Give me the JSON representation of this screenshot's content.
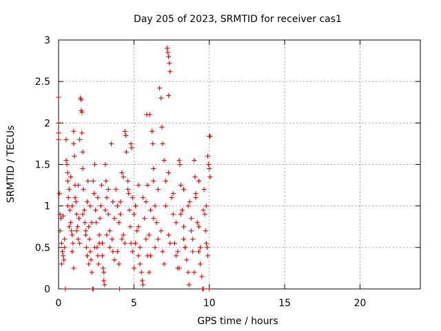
{
  "chart_data": {
    "type": "scatter",
    "title": "Day 205 of 2023, SRMTID for receiver cas1",
    "xlabel": "GPS time / hours",
    "ylabel": "SRMTID / TECUs",
    "xlim": [
      0,
      24
    ],
    "ylim": [
      0,
      3
    ],
    "x_ticks": [
      0,
      5,
      10,
      15,
      20
    ],
    "x_tick_labels": [
      "0",
      "5",
      "10",
      "15",
      "20"
    ],
    "y_ticks": [
      0,
      0.5,
      1,
      1.5,
      2,
      2.5,
      3
    ],
    "y_tick_labels": [
      "0",
      "0.5",
      "1",
      "1.5",
      "2",
      "2.5",
      "3"
    ],
    "grid": true,
    "marker": "+",
    "marker_color": "#e00000",
    "series": [
      {
        "name": "cas1",
        "points": [
          [
            0.0,
            2.31
          ],
          [
            0.0,
            2.0
          ],
          [
            0.0,
            1.88
          ],
          [
            0.0,
            1.8
          ],
          [
            0.05,
            1.15
          ],
          [
            0.1,
            0.9
          ],
          [
            0.1,
            0.7
          ],
          [
            0.15,
            0.85
          ],
          [
            0.2,
            0.55
          ],
          [
            0.2,
            0.3
          ],
          [
            0.25,
            0.45
          ],
          [
            0.3,
            0.4
          ],
          [
            0.35,
            0.35
          ],
          [
            0.4,
            0.6
          ],
          [
            0.45,
            0.0
          ],
          [
            0.5,
            1.8
          ],
          [
            0.5,
            1.55
          ],
          [
            0.55,
            1.5
          ],
          [
            0.6,
            1.4
          ],
          [
            0.6,
            1.3
          ],
          [
            0.65,
            1.1
          ],
          [
            0.7,
            1.2
          ],
          [
            0.75,
            0.95
          ],
          [
            0.8,
            0.8
          ],
          [
            0.85,
            0.7
          ],
          [
            0.9,
            1.0
          ],
          [
            0.9,
            0.65
          ],
          [
            0.95,
            0.55
          ],
          [
            1.0,
            1.9
          ],
          [
            1.0,
            1.75
          ],
          [
            1.05,
            1.6
          ],
          [
            1.1,
            1.25
          ],
          [
            1.15,
            1.05
          ],
          [
            1.2,
            0.9
          ],
          [
            1.25,
            0.75
          ],
          [
            1.3,
            0.6
          ],
          [
            1.35,
            0.85
          ],
          [
            1.4,
            1.8
          ],
          [
            1.45,
            2.3
          ],
          [
            1.5,
            2.28
          ],
          [
            1.5,
            2.15
          ],
          [
            1.55,
            2.13
          ],
          [
            1.55,
            1.88
          ],
          [
            1.6,
            1.65
          ],
          [
            1.6,
            1.45
          ],
          [
            1.65,
            1.2
          ],
          [
            1.7,
            0.95
          ],
          [
            1.75,
            0.8
          ],
          [
            1.8,
            0.7
          ],
          [
            1.85,
            0.5
          ],
          [
            1.9,
            1.05
          ],
          [
            1.95,
            1.3
          ],
          [
            2.0,
            0.75
          ],
          [
            2.05,
            0.6
          ],
          [
            2.1,
            0.45
          ],
          [
            2.15,
            0.35
          ],
          [
            2.2,
            0.2
          ],
          [
            2.25,
            0.0
          ],
          [
            2.3,
            0.0
          ],
          [
            2.35,
            1.15
          ],
          [
            2.4,
            1.5
          ],
          [
            2.45,
            0.95
          ],
          [
            2.5,
            0.8
          ],
          [
            2.55,
            0.5
          ],
          [
            2.6,
            0.4
          ],
          [
            2.65,
            0.3
          ],
          [
            2.7,
            0.65
          ],
          [
            2.75,
            0.85
          ],
          [
            2.8,
            1.0
          ],
          [
            2.85,
            1.25
          ],
          [
            2.9,
            0.55
          ],
          [
            2.95,
            0.25
          ],
          [
            3.0,
            0.1
          ],
          [
            3.05,
            0.05
          ],
          [
            3.1,
            1.5
          ],
          [
            3.15,
            1.3
          ],
          [
            3.2,
            1.1
          ],
          [
            3.3,
            0.9
          ],
          [
            3.4,
            0.7
          ],
          [
            3.5,
            1.75
          ],
          [
            3.55,
            0.6
          ],
          [
            3.6,
            0.45
          ],
          [
            3.7,
            0.35
          ],
          [
            3.8,
            1.2
          ],
          [
            3.9,
            1.0
          ],
          [
            4.0,
            0.8
          ],
          [
            4.05,
            0.0
          ],
          [
            4.1,
            1.05
          ],
          [
            4.2,
            1.4
          ],
          [
            4.3,
            0.65
          ],
          [
            4.4,
            1.9
          ],
          [
            4.45,
            1.85
          ],
          [
            4.5,
            1.65
          ],
          [
            4.6,
            1.3
          ],
          [
            4.65,
            1.15
          ],
          [
            4.7,
            0.95
          ],
          [
            4.75,
            0.75
          ],
          [
            4.8,
            1.75
          ],
          [
            4.85,
            1.7
          ],
          [
            4.9,
            1.1
          ],
          [
            5.0,
            0.9
          ],
          [
            5.1,
            0.55
          ],
          [
            5.2,
            0.7
          ],
          [
            5.3,
            0.4
          ],
          [
            5.4,
            0.3
          ],
          [
            5.5,
            0.2
          ],
          [
            5.55,
            0.1
          ],
          [
            5.6,
            0.05
          ],
          [
            5.7,
            0.85
          ],
          [
            5.8,
            1.05
          ],
          [
            5.85,
            2.1
          ],
          [
            5.9,
            1.25
          ],
          [
            6.0,
            0.65
          ],
          [
            6.05,
            2.1
          ],
          [
            6.1,
            0.4
          ],
          [
            6.2,
            1.9
          ],
          [
            6.25,
            1.75
          ],
          [
            6.3,
            1.45
          ],
          [
            6.4,
            1.0
          ],
          [
            6.5,
            0.8
          ],
          [
            6.6,
            0.6
          ],
          [
            6.7,
            2.42
          ],
          [
            6.8,
            2.3
          ],
          [
            6.85,
            1.95
          ],
          [
            6.9,
            1.75
          ],
          [
            7.0,
            1.55
          ],
          [
            7.1,
            1.3
          ],
          [
            7.2,
            2.9
          ],
          [
            7.25,
            2.85
          ],
          [
            7.3,
            2.8
          ],
          [
            7.35,
            2.72
          ],
          [
            7.4,
            2.62
          ],
          [
            7.3,
            2.33
          ],
          [
            7.5,
            1.1
          ],
          [
            7.6,
            0.9
          ],
          [
            7.7,
            0.55
          ],
          [
            7.8,
            0.4
          ],
          [
            7.9,
            0.25
          ],
          [
            8.0,
            1.55
          ],
          [
            8.05,
            1.5
          ],
          [
            8.1,
            1.25
          ],
          [
            8.2,
            0.95
          ],
          [
            8.3,
            0.75
          ],
          [
            8.4,
            0.5
          ],
          [
            8.5,
            0.35
          ],
          [
            8.6,
            0.2
          ],
          [
            8.65,
            0.05
          ],
          [
            8.7,
            1.05
          ],
          [
            8.8,
            0.85
          ],
          [
            8.9,
            0.6
          ],
          [
            9.0,
            1.55
          ],
          [
            9.05,
            1.35
          ],
          [
            9.1,
            1.1
          ],
          [
            9.2,
            0.8
          ],
          [
            9.3,
            0.45
          ],
          [
            9.4,
            0.3
          ],
          [
            9.5,
            0.15
          ],
          [
            9.55,
            0.0
          ],
          [
            9.6,
            0.0
          ],
          [
            9.65,
            1.2
          ],
          [
            9.7,
            0.9
          ],
          [
            9.75,
            0.7
          ],
          [
            9.8,
            1.0
          ],
          [
            9.85,
            0.5
          ],
          [
            9.9,
            1.6
          ],
          [
            9.95,
            1.5
          ],
          [
            10.0,
            1.45
          ],
          [
            10.05,
            1.35
          ],
          [
            10.0,
            1.84
          ],
          [
            10.05,
            1.84
          ],
          [
            10.0,
            0.0
          ],
          [
            0.3,
            0.88
          ],
          [
            0.7,
            0.75
          ],
          [
            1.2,
            0.7
          ],
          [
            1.8,
            0.65
          ],
          [
            2.2,
            0.8
          ],
          [
            2.7,
            0.55
          ],
          [
            3.2,
            0.65
          ],
          [
            3.7,
            0.85
          ],
          [
            4.2,
            0.6
          ],
          [
            4.8,
            0.55
          ],
          [
            5.3,
            0.75
          ],
          [
            5.8,
            0.6
          ],
          [
            6.3,
            0.85
          ],
          [
            6.8,
            0.7
          ],
          [
            7.3,
            0.65
          ],
          [
            7.8,
            0.8
          ],
          [
            8.3,
            0.6
          ],
          [
            8.8,
            0.7
          ],
          [
            9.3,
            0.75
          ],
          [
            9.8,
            0.55
          ],
          [
            0.6,
            1.0
          ],
          [
            1.1,
            1.1
          ],
          [
            1.6,
            0.9
          ],
          [
            2.1,
            1.0
          ],
          [
            2.6,
            1.1
          ],
          [
            3.1,
            0.95
          ],
          [
            3.6,
            1.05
          ],
          [
            4.1,
            0.9
          ],
          [
            4.6,
            1.2
          ],
          [
            5.1,
            1.0
          ],
          [
            5.6,
            1.1
          ],
          [
            6.1,
            0.95
          ],
          [
            6.6,
            1.2
          ],
          [
            7.1,
            1.0
          ],
          [
            7.6,
            1.15
          ],
          [
            8.1,
            0.9
          ],
          [
            8.6,
            1.0
          ],
          [
            9.1,
            1.15
          ],
          [
            9.6,
            0.95
          ],
          [
            0.4,
            0.5
          ],
          [
            0.9,
            0.45
          ],
          [
            1.4,
            0.55
          ],
          [
            1.9,
            0.4
          ],
          [
            2.4,
            0.5
          ],
          [
            2.9,
            0.4
          ],
          [
            3.4,
            0.5
          ],
          [
            3.9,
            0.45
          ],
          [
            4.4,
            0.55
          ],
          [
            4.9,
            0.45
          ],
          [
            5.4,
            0.5
          ],
          [
            5.9,
            0.4
          ],
          [
            6.4,
            0.5
          ],
          [
            6.9,
            0.45
          ],
          [
            7.4,
            0.55
          ],
          [
            7.9,
            0.45
          ],
          [
            8.4,
            0.5
          ],
          [
            8.9,
            0.45
          ],
          [
            9.4,
            0.5
          ],
          [
            9.9,
            0.4
          ],
          [
            0.8,
            1.35
          ],
          [
            1.3,
            1.25
          ],
          [
            2.3,
            1.3
          ],
          [
            3.3,
            1.2
          ],
          [
            4.3,
            1.35
          ],
          [
            5.3,
            1.25
          ],
          [
            6.3,
            1.3
          ],
          [
            7.3,
            1.4
          ],
          [
            8.3,
            1.2
          ],
          [
            9.3,
            1.3
          ],
          [
            1.0,
            0.25
          ],
          [
            2.0,
            0.3
          ],
          [
            3.0,
            0.2
          ],
          [
            4.0,
            0.3
          ],
          [
            5.0,
            0.25
          ],
          [
            6.0,
            0.2
          ],
          [
            7.0,
            0.3
          ],
          [
            8.0,
            0.25
          ],
          [
            9.0,
            0.2
          ]
        ]
      }
    ]
  }
}
